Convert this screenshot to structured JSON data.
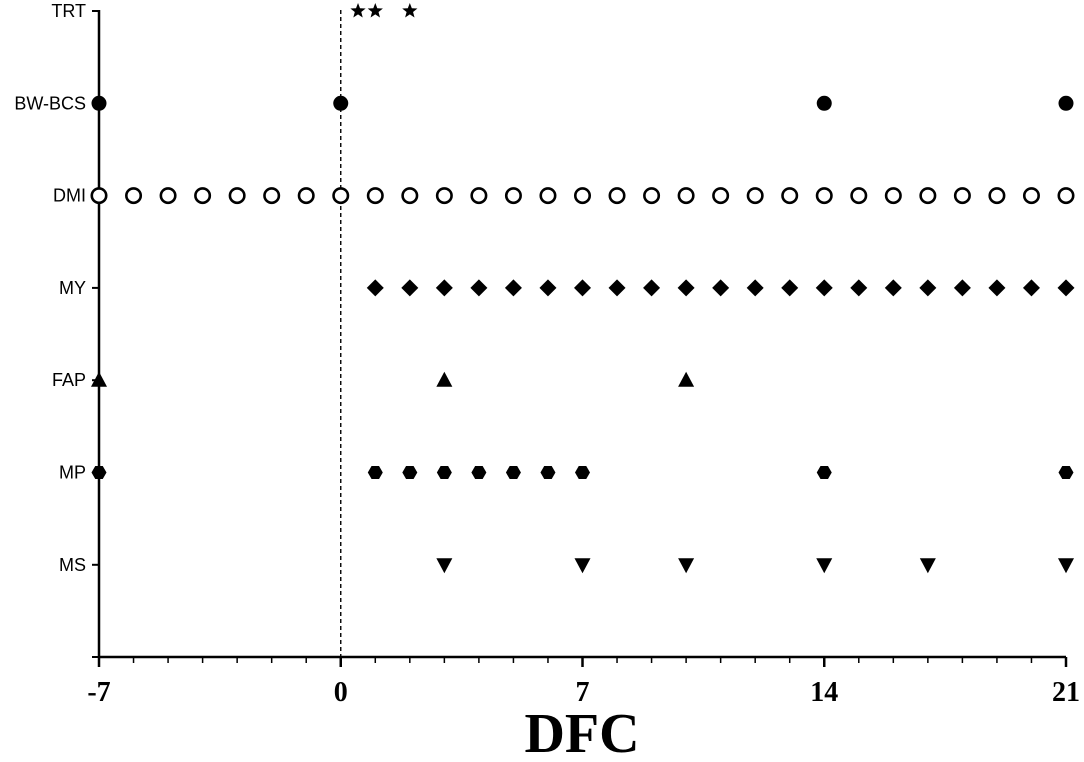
{
  "chart_data": {
    "type": "scatter",
    "title": "",
    "xlabel": "DFC",
    "ylabel": "",
    "xlim": [
      -7,
      21
    ],
    "xticks": [
      -7,
      0,
      7,
      14,
      21
    ],
    "grid": false,
    "reference_line": {
      "x": 0,
      "style": "dashed"
    },
    "categories": [
      "TRT",
      "BW-BCS",
      "DMI",
      "MY",
      "FAP",
      "MP",
      "MS"
    ],
    "series": [
      {
        "name": "TRT",
        "marker": "star",
        "x": [
          0.5,
          1,
          2
        ]
      },
      {
        "name": "BW-BCS",
        "marker": "filled-circle",
        "x": [
          -7,
          0,
          14,
          21
        ]
      },
      {
        "name": "DMI",
        "marker": "open-circle",
        "x": [
          -7,
          -6,
          -5,
          -4,
          -3,
          -2,
          -1,
          0,
          1,
          2,
          3,
          4,
          5,
          6,
          7,
          8,
          9,
          10,
          11,
          12,
          13,
          14,
          15,
          16,
          17,
          18,
          19,
          20,
          21
        ]
      },
      {
        "name": "MY",
        "marker": "filled-diamond",
        "x": [
          1,
          2,
          3,
          4,
          5,
          6,
          7,
          8,
          9,
          10,
          11,
          12,
          13,
          14,
          15,
          16,
          17,
          18,
          19,
          20,
          21
        ]
      },
      {
        "name": "FAP",
        "marker": "triangle-up",
        "x": [
          -7,
          3,
          10
        ]
      },
      {
        "name": "MP",
        "marker": "filled-hexagon",
        "x": [
          -7,
          1,
          2,
          3,
          4,
          5,
          6,
          7,
          14,
          21
        ]
      },
      {
        "name": "MS",
        "marker": "triangle-down",
        "x": [
          3,
          7,
          10,
          14,
          17,
          21
        ]
      }
    ]
  }
}
